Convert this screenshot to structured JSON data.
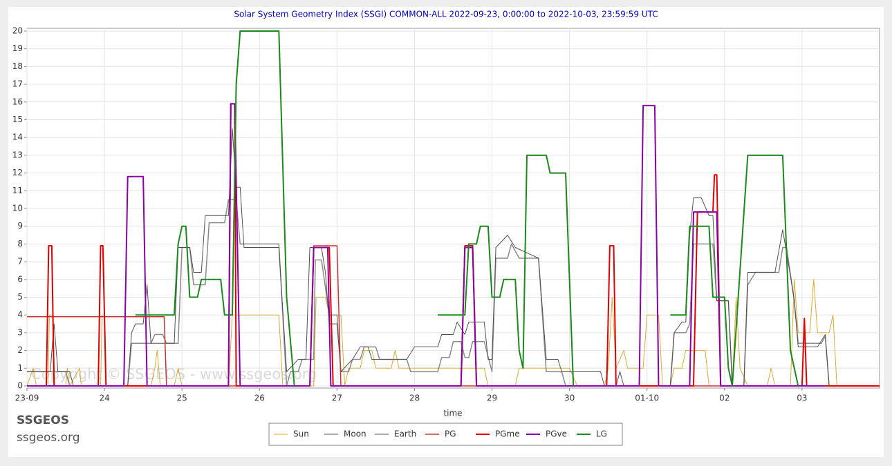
{
  "chart_data": {
    "type": "line",
    "title": "Solar System Geometry Index (SSGI) COMMON-ALL 2022-09-23,  0:00:00 to 2022-10-03, 23:59:59 UTC",
    "xlabel": "time",
    "watermark": "Copyright © SSGEOS - www.ssgeos.org",
    "brand": "SSGEOS",
    "site": "ssgeos.org",
    "xlim": [
      0,
      11
    ],
    "ylim": [
      0,
      20
    ],
    "xticks": [
      {
        "value": 0,
        "label": "23-09"
      },
      {
        "value": 1,
        "label": "24"
      },
      {
        "value": 2,
        "label": "25"
      },
      {
        "value": 3,
        "label": "26"
      },
      {
        "value": 4,
        "label": "27"
      },
      {
        "value": 5,
        "label": "28"
      },
      {
        "value": 6,
        "label": "29"
      },
      {
        "value": 7,
        "label": "30"
      },
      {
        "value": 8,
        "label": "01-10"
      },
      {
        "value": 9,
        "label": "02"
      },
      {
        "value": 10,
        "label": "03"
      }
    ],
    "yticks": [
      0,
      1,
      2,
      3,
      4,
      5,
      6,
      7,
      8,
      9,
      10,
      11,
      12,
      13,
      14,
      15,
      16,
      17,
      18,
      19,
      20
    ],
    "grid": true,
    "legend": "bottom",
    "series": [
      {
        "name": "Sun",
        "color": "#e0a82e",
        "width": 1,
        "x": [
          0,
          0.08,
          0.12,
          0.27,
          0.29,
          0.33,
          0.36,
          0.5,
          0.52,
          0.55,
          0.68,
          0.7,
          0.95,
          0.97,
          1.0,
          1.02,
          1.6,
          1.65,
          1.68,
          1.72,
          1.9,
          1.95,
          2.0,
          2.6,
          2.65,
          3.25,
          3.3,
          3.7,
          3.73,
          3.85,
          3.9,
          4.05,
          4.1,
          4.15,
          4.3,
          4.35,
          4.45,
          4.5,
          4.7,
          4.75,
          4.8,
          5.0,
          5.5,
          5.9,
          5.95,
          6.3,
          6.35,
          7.0,
          7.1,
          7.45,
          7.5,
          7.55,
          7.6,
          7.7,
          7.75,
          7.95,
          8.0,
          8.15,
          8.2,
          8.3,
          8.35,
          8.45,
          8.5,
          8.75,
          8.8,
          9.1,
          9.15,
          9.2,
          9.3,
          9.55,
          9.6,
          9.65,
          9.85,
          9.9,
          9.95,
          10.1,
          10.15,
          10.2,
          10.35,
          10.4,
          10.45,
          11
        ],
        "values": [
          0,
          1,
          0,
          0,
          4,
          4,
          0,
          0,
          1,
          0,
          1,
          0,
          0,
          4,
          4,
          0,
          0,
          1,
          2,
          0,
          0,
          1,
          0,
          0,
          4,
          4,
          0,
          0,
          5,
          5,
          4,
          4,
          0,
          1,
          1,
          2,
          2,
          1,
          1,
          2,
          1,
          1,
          1,
          1,
          0,
          0,
          1,
          1,
          0,
          0,
          1,
          5,
          1,
          2,
          1,
          1,
          4,
          4,
          0,
          0,
          1,
          1,
          2,
          2,
          0,
          0,
          5,
          1,
          0,
          0,
          1,
          0,
          0,
          6,
          3,
          3,
          6,
          3,
          3,
          4,
          0,
          0
        ]
      },
      {
        "name": "Moon",
        "color": "#8a8a8a",
        "width": 1.5,
        "x": [
          0,
          0.5,
          0.55,
          1.3,
          1.35,
          1.6,
          1.65,
          1.75,
          1.8,
          1.95,
          2.0,
          2.1,
          2.15,
          2.3,
          2.35,
          2.55,
          2.6,
          2.7,
          2.75,
          3.25,
          3.35,
          3.4,
          3.5,
          3.55,
          3.7,
          3.72,
          3.8,
          3.9,
          4.0,
          4.05,
          4.15,
          4.2,
          4.3,
          4.35,
          4.5,
          4.55,
          4.9,
          4.95,
          5.3,
          5.35,
          5.45,
          5.5,
          5.6,
          5.65,
          5.7,
          5.75,
          5.9,
          6.0,
          6.05,
          6.2,
          6.25,
          6.35,
          6.6,
          6.7,
          6.9,
          6.95,
          8.3,
          8.35,
          8.5,
          8.55,
          8.6,
          8.85,
          8.9,
          9.05,
          9.1,
          9.25,
          9.3,
          9.4,
          9.7,
          9.75,
          9.8,
          9.9,
          9.95,
          10.25,
          10.3,
          10.35,
          11
        ],
        "values": [
          0.8,
          0.8,
          0,
          0,
          2.4,
          2.4,
          2.9,
          2.9,
          2.4,
          2.4,
          7.8,
          7.8,
          5.7,
          5.7,
          9.2,
          9.2,
          10.5,
          10.5,
          8,
          8,
          0,
          0.8,
          0.8,
          1.5,
          1.5,
          7.1,
          7.1,
          4,
          4,
          0.8,
          0.8,
          1.5,
          1.5,
          2.2,
          2.2,
          1.5,
          1.5,
          0.8,
          0.8,
          1.6,
          1.6,
          2.5,
          2.5,
          1.6,
          1.6,
          2.5,
          2.5,
          0.8,
          7.2,
          7.2,
          8,
          7.2,
          7.2,
          0.8,
          0.8,
          0,
          0,
          3,
          3,
          3.5,
          8,
          8,
          4.8,
          4.8,
          0,
          0,
          5.7,
          6.4,
          6.4,
          7.8,
          7.8,
          4.8,
          2.4,
          2.4,
          2.8,
          0,
          0
        ]
      },
      {
        "name": "Earth",
        "color": "#505050",
        "width": 1,
        "x": [
          0,
          0.3,
          0.35,
          0.4,
          0.55,
          0.6,
          1.3,
          1.35,
          1.4,
          1.5,
          1.55,
          1.6,
          1.9,
          1.95,
          2.1,
          2.15,
          2.25,
          2.3,
          2.6,
          2.65,
          2.7,
          2.75,
          2.8,
          3.25,
          3.35,
          3.5,
          3.6,
          3.65,
          3.8,
          3.85,
          3.9,
          4.0,
          4.05,
          4.2,
          4.3,
          4.4,
          4.45,
          4.9,
          5.0,
          5.3,
          5.35,
          5.5,
          5.55,
          5.65,
          5.7,
          5.9,
          5.95,
          6.0,
          6.05,
          6.2,
          6.3,
          6.6,
          6.7,
          6.85,
          6.9,
          7.4,
          7.45,
          7.6,
          7.65,
          7.7,
          8.3,
          8.35,
          8.45,
          8.5,
          8.55,
          8.6,
          8.7,
          8.8,
          8.85,
          8.9,
          9.05,
          9.1,
          9.25,
          9.3,
          9.65,
          9.75,
          9.85,
          9.9,
          9.95,
          10.2,
          10.3,
          10.35,
          11
        ],
        "values": [
          0.8,
          0.8,
          3.5,
          0.8,
          0.8,
          0,
          0,
          3,
          3.5,
          3.5,
          5.7,
          2.4,
          2.4,
          7.8,
          7.8,
          6.4,
          6.4,
          9.6,
          9.6,
          14.5,
          11.2,
          11.2,
          7.8,
          7.8,
          0.8,
          1.5,
          1.5,
          7.8,
          7.8,
          6.4,
          3.5,
          3.5,
          0.8,
          1.5,
          2.2,
          2.2,
          1.5,
          1.5,
          2.2,
          2.2,
          2.9,
          2.9,
          3.6,
          2.9,
          3.6,
          3.6,
          1.5,
          1.5,
          7.8,
          8.5,
          7.8,
          7.2,
          1.5,
          1.5,
          0.8,
          0.8,
          0,
          0,
          0.8,
          0,
          0,
          3,
          3.6,
          3.6,
          8.5,
          10.6,
          10.6,
          9.6,
          9.6,
          4.8,
          4.8,
          0,
          0,
          6.4,
          6.4,
          8.8,
          6.2,
          4.8,
          2.2,
          2.2,
          2.9,
          0,
          0
        ]
      },
      {
        "name": "PG",
        "color": "#c83232",
        "width": 1.5,
        "x": [
          0,
          1.77,
          1.8,
          3.65,
          3.7,
          4.0,
          4.05,
          11
        ],
        "values": [
          3.9,
          3.9,
          0,
          0,
          7.9,
          7.9,
          0,
          0
        ]
      },
      {
        "name": "PGme",
        "color": "#e00000",
        "width": 2,
        "x": [
          0,
          0.25,
          0.28,
          0.32,
          0.35,
          0.92,
          0.95,
          0.98,
          1.02,
          2.6,
          2.63,
          2.68,
          2.7,
          3.65,
          3.7,
          3.9,
          3.95,
          5.6,
          5.65,
          5.75,
          5.8,
          7.48,
          7.52,
          7.57,
          7.6,
          8.6,
          8.65,
          8.85,
          8.87,
          8.9,
          8.95,
          10.0,
          10.03,
          10.06,
          11
        ],
        "values": [
          0,
          0,
          7.9,
          7.9,
          0,
          0,
          7.9,
          7.9,
          0,
          0,
          15.9,
          15.9,
          0,
          0,
          7.8,
          7.8,
          0,
          0,
          7.9,
          7.9,
          0,
          0,
          7.9,
          7.9,
          0,
          0,
          9.8,
          9.8,
          11.9,
          11.9,
          0,
          0,
          3.8,
          0,
          0
        ]
      },
      {
        "name": "PGve",
        "color": "#8b00a8",
        "width": 2,
        "x": [
          0,
          1.25,
          1.3,
          1.5,
          1.55,
          2.6,
          2.63,
          2.68,
          2.75,
          3.65,
          3.7,
          3.88,
          3.92,
          5.6,
          5.65,
          5.75,
          5.8,
          7.9,
          7.95,
          8.1,
          8.15,
          8.55,
          8.6,
          8.9,
          8.95,
          10.3
        ],
        "values": [
          0,
          0,
          11.8,
          11.8,
          0,
          0,
          15.9,
          15.9,
          0,
          0,
          7.8,
          7.8,
          0,
          0,
          7.8,
          7.8,
          0,
          0,
          15.8,
          15.8,
          0,
          0,
          9.8,
          9.8,
          0,
          0
        ]
      },
      {
        "name": "LG",
        "color": "#1a8a1a",
        "width": 2,
        "x": [
          1.4,
          1.9,
          1.95,
          2.0,
          2.05,
          2.1,
          2.2,
          2.25,
          2.5,
          2.55,
          2.65,
          2.7,
          2.75,
          3.25,
          3.35,
          3.45,
          4.5,
          5.3,
          5.65,
          5.7,
          5.8,
          5.85,
          5.95,
          6.0,
          6.1,
          6.15,
          6.3,
          6.35,
          6.4,
          6.45,
          6.7,
          6.75,
          6.95,
          7.05,
          7.6,
          8.3,
          8.5,
          8.55,
          8.8,
          8.85,
          9.0,
          9.05,
          9.1,
          9.3,
          9.75,
          9.85,
          9.95
        ],
        "values": [
          4,
          4,
          8,
          9,
          9,
          5,
          5,
          6,
          6,
          4,
          4,
          17,
          20,
          20,
          5,
          0,
          null,
          4,
          4,
          8,
          8,
          9,
          9,
          5,
          5,
          6,
          6,
          2,
          1,
          13,
          13,
          12,
          12,
          0,
          null,
          4,
          4,
          9,
          9,
          5,
          5,
          1,
          0,
          13,
          13,
          2,
          0
        ]
      }
    ]
  }
}
